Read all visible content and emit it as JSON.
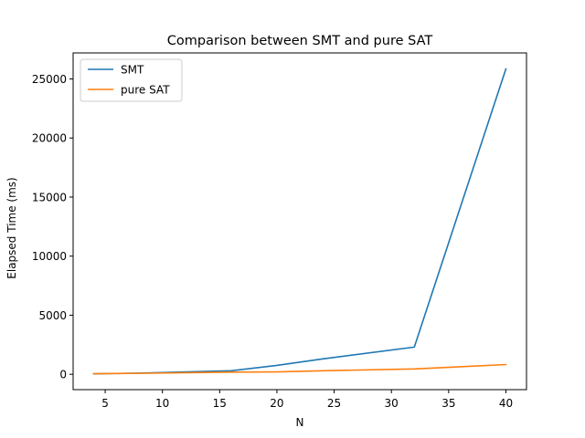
{
  "chart_data": {
    "type": "line",
    "title": "Comparison between SMT and pure SAT",
    "xlabel": "N",
    "ylabel": "Elapsed Time (ms)",
    "xlim": [
      2.2,
      41.8
    ],
    "ylim": [
      -1300,
      27200
    ],
    "xticks": [
      5,
      10,
      15,
      20,
      25,
      30,
      35,
      40
    ],
    "yticks": [
      0,
      5000,
      10000,
      15000,
      20000,
      25000
    ],
    "legend": "top-left",
    "grid": false,
    "series": [
      {
        "name": "SMT",
        "color": "#1f77b4",
        "x": [
          4,
          8,
          16,
          20,
          24,
          32,
          40
        ],
        "y": [
          40,
          100,
          300,
          750,
          1300,
          2300,
          25850
        ]
      },
      {
        "name": "pure SAT",
        "color": "#ff7f0e",
        "x": [
          4,
          8,
          16,
          20,
          24,
          32,
          40
        ],
        "y": [
          50,
          80,
          180,
          200,
          300,
          450,
          820
        ]
      }
    ]
  }
}
